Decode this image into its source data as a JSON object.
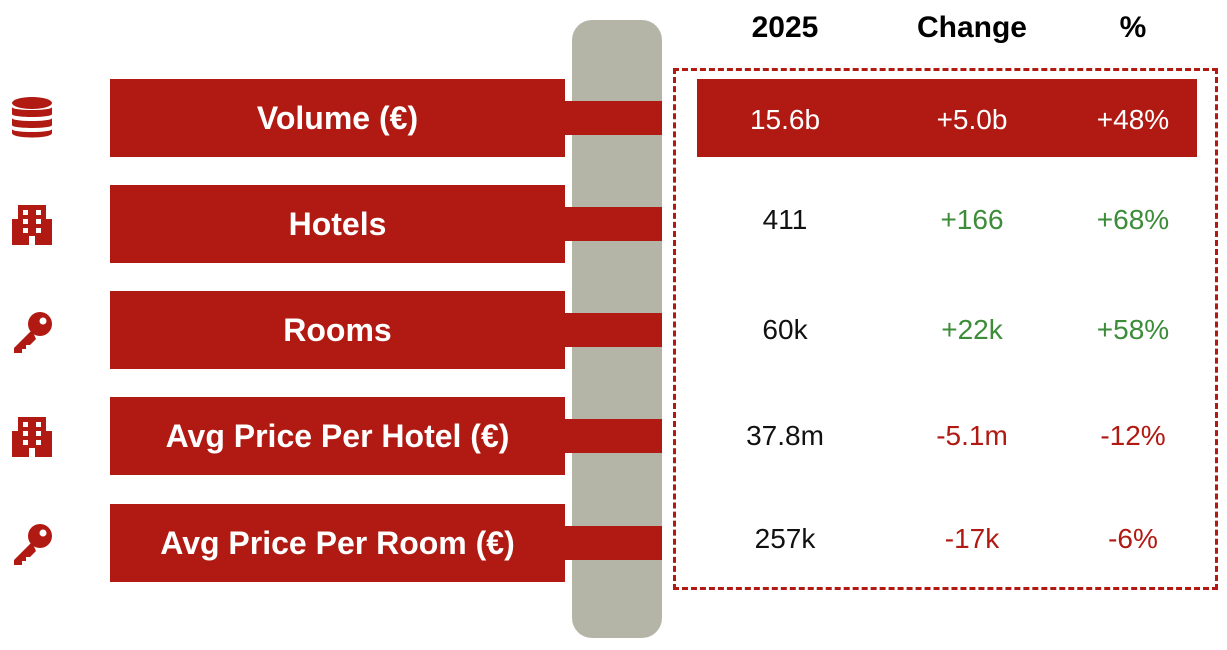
{
  "header": {
    "year": "2025",
    "change": "Change",
    "pct": "%"
  },
  "colors": {
    "accent": "#b01a12",
    "spine": "#b5b5a7",
    "positive": "#3c8c3a",
    "negative": "#b01a12"
  },
  "rows": [
    {
      "icon": "database-icon",
      "label": "Volume (€)",
      "value": "15.6b",
      "change": "+5.0b",
      "pct": "+48%",
      "trend": "highlight"
    },
    {
      "icon": "building-icon",
      "label": "Hotels",
      "value": "411",
      "change": "+166",
      "pct": "+68%",
      "trend": "up"
    },
    {
      "icon": "key-icon",
      "label": "Rooms",
      "value": "60k",
      "change": "+22k",
      "pct": "+58%",
      "trend": "up"
    },
    {
      "icon": "building-icon",
      "label": "Avg Price Per Hotel (€)",
      "value": "37.8m",
      "change": "-5.1m",
      "pct": "-12%",
      "trend": "down"
    },
    {
      "icon": "key-icon",
      "label": "Avg Price Per Room (€)",
      "value": "257k",
      "change": "-17k",
      "pct": "-6%",
      "trend": "down"
    }
  ]
}
